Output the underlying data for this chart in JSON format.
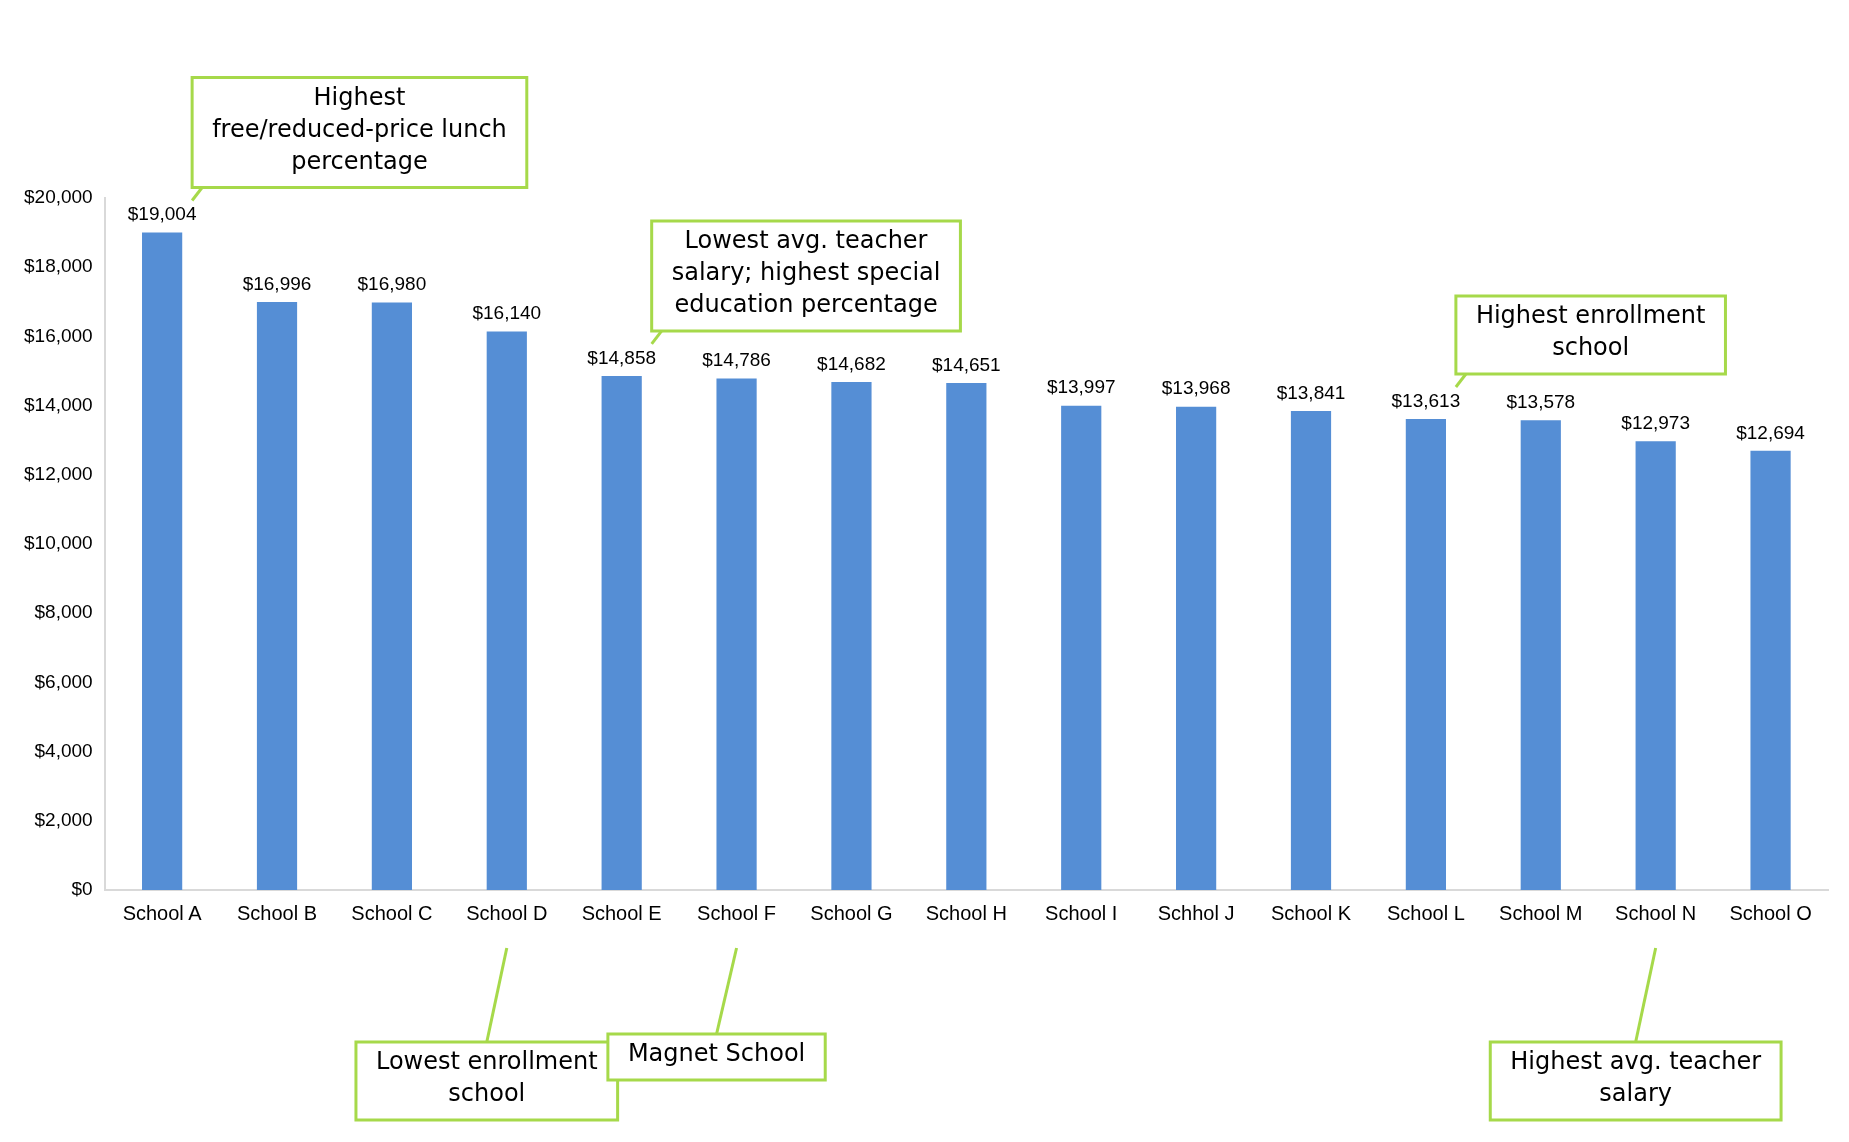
{
  "chart_data": {
    "type": "bar",
    "categories": [
      "School A",
      "School B",
      "School C",
      "School D",
      "School E",
      "School F",
      "School G",
      "School H",
      "School I",
      "Schhol J",
      "School K",
      "School L",
      "School M",
      "School N",
      "School O"
    ],
    "values": [
      19004,
      16996,
      16980,
      16140,
      14858,
      14786,
      14682,
      14651,
      13997,
      13968,
      13841,
      13613,
      13578,
      12973,
      12694
    ],
    "value_labels": [
      "$19,004",
      "$16,996",
      "$16,980",
      "$16,140",
      "$14,858",
      "$14,786",
      "$14,682",
      "$14,651",
      "$13,997",
      "$13,968",
      "$13,841",
      "$13,613",
      "$13,578",
      "$12,973",
      "$12,694"
    ],
    "color": "#558ed5",
    "ylim": [
      0,
      20000
    ],
    "yticks": [
      {
        "value": 0,
        "label": "$0"
      },
      {
        "value": 2000,
        "label": "$2,000"
      },
      {
        "value": 4000,
        "label": "$4,000"
      },
      {
        "value": 6000,
        "label": "$6,000"
      },
      {
        "value": 8000,
        "label": "$8,000"
      },
      {
        "value": 10000,
        "label": "$10,000"
      },
      {
        "value": 12000,
        "label": "$12,000"
      },
      {
        "value": 14000,
        "label": "$14,000"
      },
      {
        "value": 16000,
        "label": "$16,000"
      },
      {
        "value": 18000,
        "label": "$18,000"
      },
      {
        "value": 20000,
        "label": "$20,000"
      }
    ],
    "grid": false,
    "legend": false,
    "annotations": [
      "Highest free/reduced-price lunch percentage",
      "Lowest avg. teacher salary; highest special education percentage",
      "Highest enrollment school",
      {
        "text": "Lowest enrollment school",
        "x": "School D"
      },
      {
        "text": "Magnet School",
        "x": "School F"
      },
      {
        "text": "Highest avg. teacher salary",
        "x": "School N"
      }
    ]
  }
}
